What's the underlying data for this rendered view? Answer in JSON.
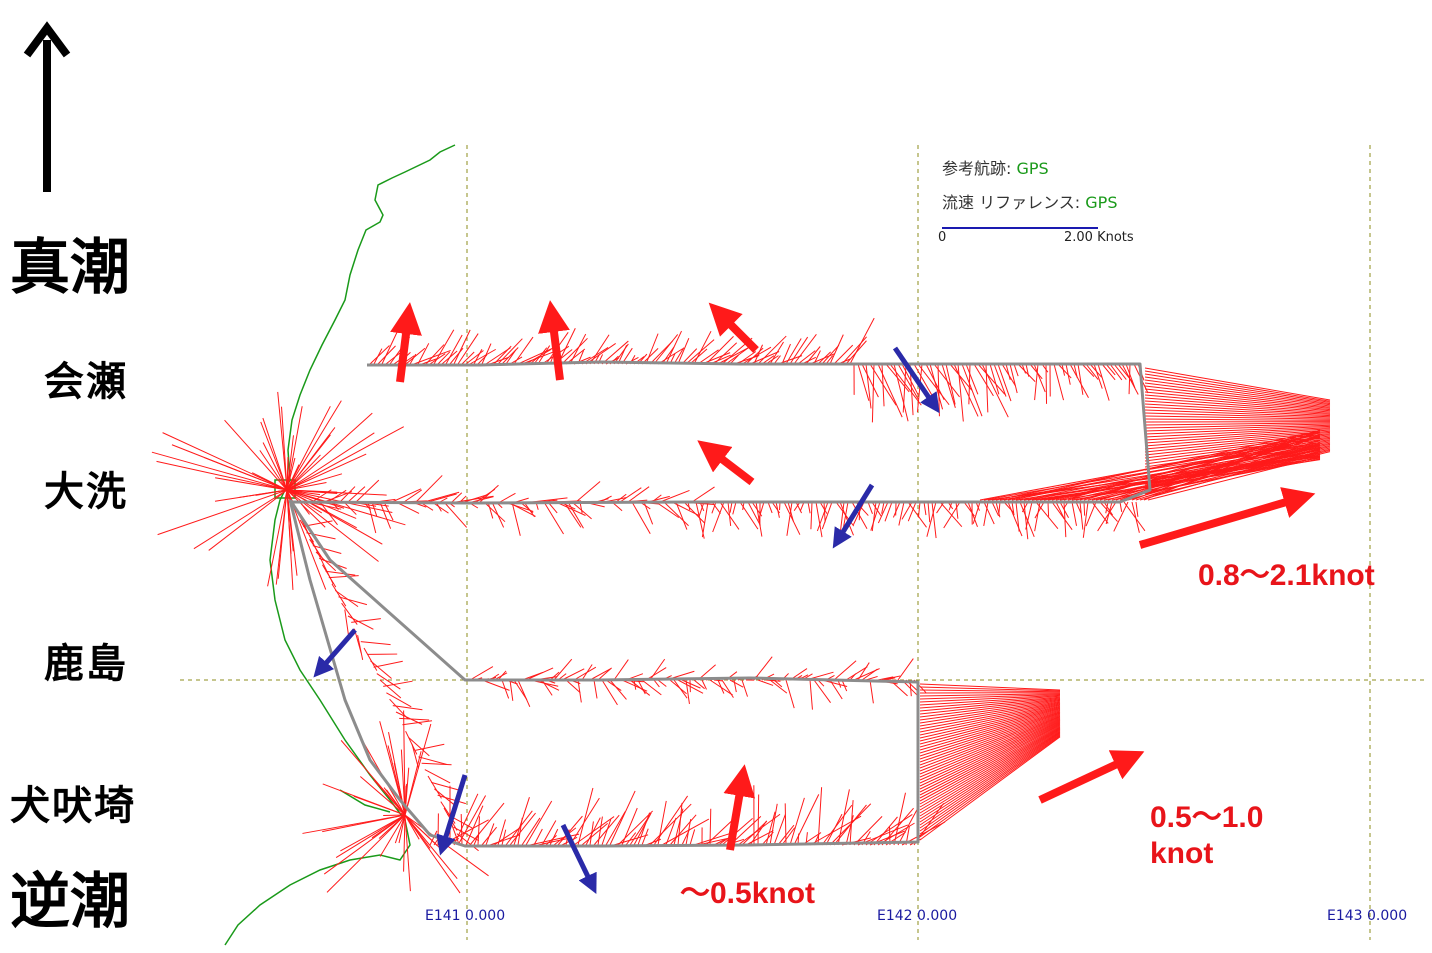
{
  "tide_labels": {
    "top": "真潮",
    "bottom": "逆潮"
  },
  "places": [
    "会瀬",
    "大洗",
    "鹿島",
    "犬吠埼"
  ],
  "legend": {
    "ref_track_label": "参考航跡:",
    "ref_track_value": "GPS",
    "current_ref_label": "流速 リファレンス:",
    "current_ref_value": "GPS",
    "scale_min": "0",
    "scale_max": "2.00 Knots"
  },
  "longitudes": [
    "E141 0.000",
    "E142 0.000",
    "E143 0.000"
  ],
  "annotations": {
    "north_speed": "0.8～2.1knot",
    "south_speed": "0.5～1.0\nknot",
    "coastal_speed": "～0.5knot"
  },
  "colors": {
    "current_vector": "#ff1a1a",
    "track": "#8c8c8c",
    "coastline": "#1a9a1a",
    "grid": "#8c8c1e",
    "south_arrow": "#2a2aa8",
    "label_red": "#e8141a"
  }
}
